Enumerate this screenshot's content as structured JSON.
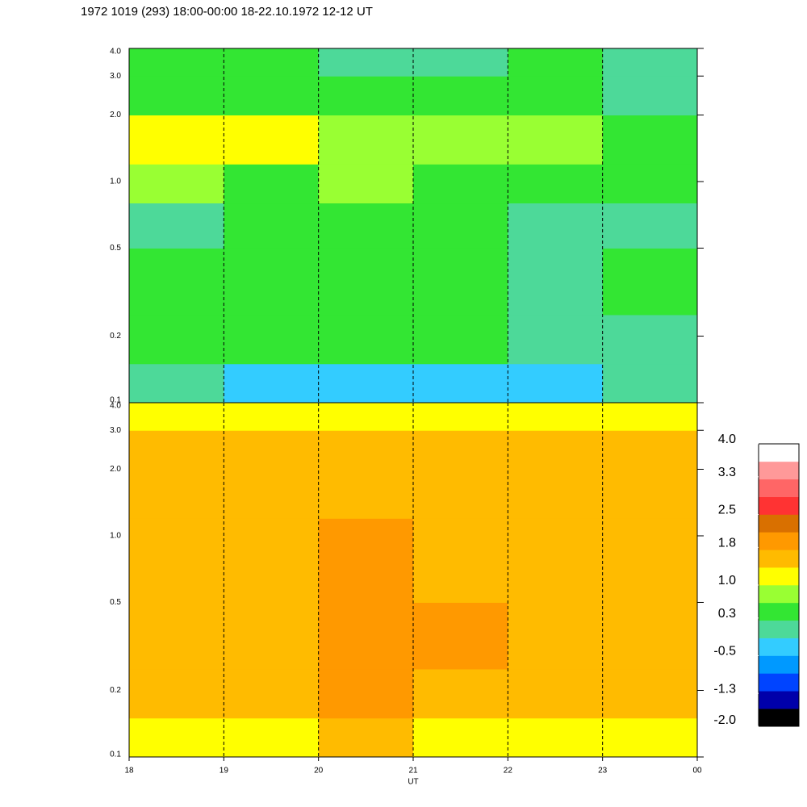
{
  "chart_data": [
    {
      "type": "heatmap",
      "title": "1972 1019 (293) 18:00-00:00 18-22.10.1972  12-12 UT",
      "xlim": [
        18,
        24
      ],
      "xticks": [
        19,
        20,
        21,
        22,
        23
      ],
      "ylim": [
        0.1,
        4
      ],
      "ylog": true,
      "yticks": [
        0.1,
        0.2,
        0.5,
        {
          "value": 1,
          "label": "1.0"
        },
        {
          "value": 2,
          "label": "2.0"
        },
        {
          "value": 3,
          "label": "3.0"
        },
        {
          "value": 4,
          "label": "4.0"
        }
      ],
      "grid": "dashed",
      "xbins": [
        18,
        19,
        20,
        21,
        22,
        23,
        24
      ],
      "ybins": [
        0.1,
        0.15,
        0.25,
        0.5,
        0.8,
        1.2,
        2,
        3,
        4
      ],
      "z": [
        [
          -0.1,
          -0.2,
          -0.3,
          -0.3,
          -0.4,
          0.0
        ],
        [
          0.3,
          0.4,
          0.4,
          0.3,
          0.1,
          0.2
        ],
        [
          0.3,
          0.5,
          0.6,
          0.4,
          0.1,
          0.3
        ],
        [
          0.2,
          0.4,
          0.5,
          0.3,
          0.0,
          0.2
        ],
        [
          0.7,
          0.6,
          0.8,
          0.5,
          0.6,
          0.5
        ],
        [
          1.0,
          1.1,
          0.8,
          0.7,
          0.9,
          0.6
        ],
        [
          0.4,
          0.5,
          0.4,
          0.3,
          0.5,
          0.2
        ],
        [
          0.3,
          0.3,
          0.2,
          0.2,
          0.3,
          0.1
        ]
      ]
    },
    {
      "type": "heatmap",
      "xlabel": "UT",
      "xlim": [
        18,
        24
      ],
      "xticks": [
        18,
        19,
        20,
        21,
        22,
        23,
        {
          "value": 24,
          "label": "00"
        }
      ],
      "ylim": [
        0.1,
        4
      ],
      "ylog": true,
      "yticks": [
        0.1,
        0.2,
        0.5,
        {
          "value": 1,
          "label": "1.0"
        },
        {
          "value": 2,
          "label": "2.0"
        },
        {
          "value": 3,
          "label": "3.0"
        },
        {
          "value": 4,
          "label": "4.0"
        }
      ],
      "grid": "dashed",
      "xbins": [
        18,
        19,
        20,
        21,
        22,
        23,
        24
      ],
      "ybins": [
        0.1,
        0.15,
        0.25,
        0.5,
        0.8,
        1.2,
        2,
        3,
        4
      ],
      "z": [
        [
          1.2,
          1.3,
          1.4,
          1.3,
          1.2,
          1.2
        ],
        [
          1.4,
          1.6,
          1.8,
          1.7,
          1.4,
          1.4
        ],
        [
          1.5,
          1.7,
          2.0,
          1.8,
          1.5,
          1.6
        ],
        [
          1.4,
          1.6,
          1.9,
          1.6,
          1.4,
          1.5
        ],
        [
          1.5,
          1.6,
          1.8,
          1.5,
          1.4,
          1.4
        ],
        [
          1.6,
          1.7,
          1.6,
          1.6,
          1.5,
          1.5
        ],
        [
          1.6,
          1.7,
          1.6,
          1.6,
          1.6,
          1.5
        ],
        [
          1.0,
          1.1,
          1.0,
          1.0,
          1.0,
          1.0
        ]
      ],
      "colorbar": {
        "lim": [
          -2,
          4
        ],
        "colors": [
          "#000000",
          "#0000aa",
          "#0044ff",
          "#0099ff",
          "#33ccff",
          "#4dd999",
          "#33e633",
          "#99ff33",
          "#ffff00",
          "#ffbb00",
          "#ff9900",
          "#d97000",
          "#ff3333",
          "#ff6666",
          "#ff9999",
          "#ffffff"
        ],
        "ticks": [
          {
            "value": 4,
            "label": "4.0"
          },
          3.3,
          2.5,
          1.8,
          {
            "value": 1,
            "label": "1.0"
          },
          0.3,
          -0.5,
          -1.3,
          {
            "value": -2,
            "label": "-2.0"
          }
        ]
      }
    }
  ]
}
